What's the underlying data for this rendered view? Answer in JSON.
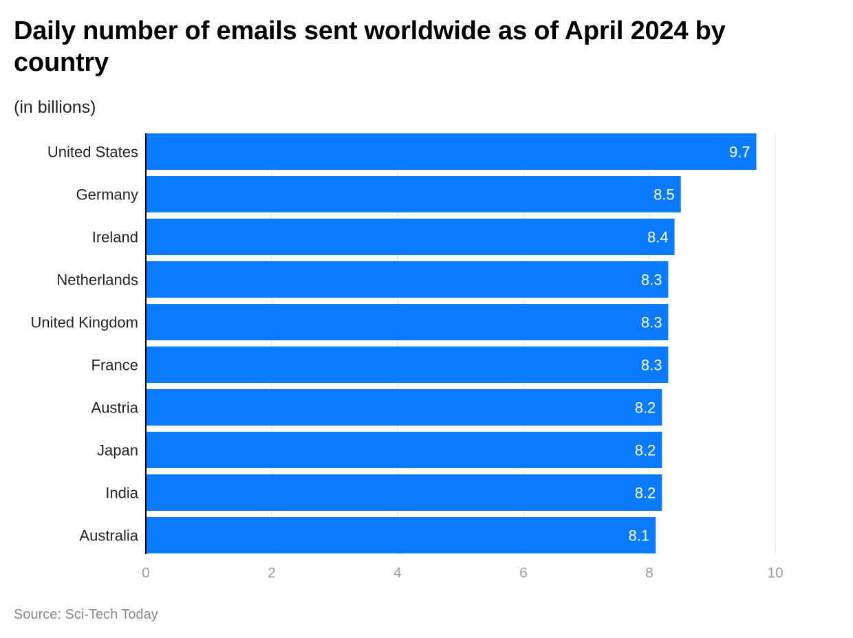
{
  "header": {
    "title": "Daily number of emails sent worldwide as of April 2024 by country",
    "subtitle": "(in billions)"
  },
  "footer": {
    "source_label": "Source:",
    "source_name": "Sci-Tech Today"
  },
  "colors": {
    "bar": "#0a7bff",
    "grid": "#e0e0e0",
    "axis": "#000000",
    "tick_label": "#9e9e9e",
    "category_label": "#222222",
    "value_label": "#ffffff"
  },
  "chart_data": {
    "type": "bar",
    "orientation": "horizontal",
    "categories": [
      "United States",
      "Germany",
      "Ireland",
      "Netherlands",
      "United Kingdom",
      "France",
      "Austria",
      "Japan",
      "India",
      "Australia"
    ],
    "values": [
      9.7,
      8.5,
      8.4,
      8.3,
      8.3,
      8.3,
      8.2,
      8.2,
      8.2,
      8.1
    ],
    "value_labels": [
      "9.7",
      "8.5",
      "8.4",
      "8.3",
      "8.3",
      "8.3",
      "8.2",
      "8.2",
      "8.2",
      "8.1"
    ],
    "title": "Daily number of emails sent worldwide as of April 2024 by country",
    "subtitle": "(in billions)",
    "xlabel": "",
    "ylabel": "",
    "xlim": [
      0,
      10
    ],
    "xticks": [
      0,
      2,
      4,
      6,
      8,
      10
    ],
    "xtick_labels": [
      "0",
      "2",
      "4",
      "6",
      "8",
      "10"
    ],
    "grid": true,
    "legend": "none"
  }
}
